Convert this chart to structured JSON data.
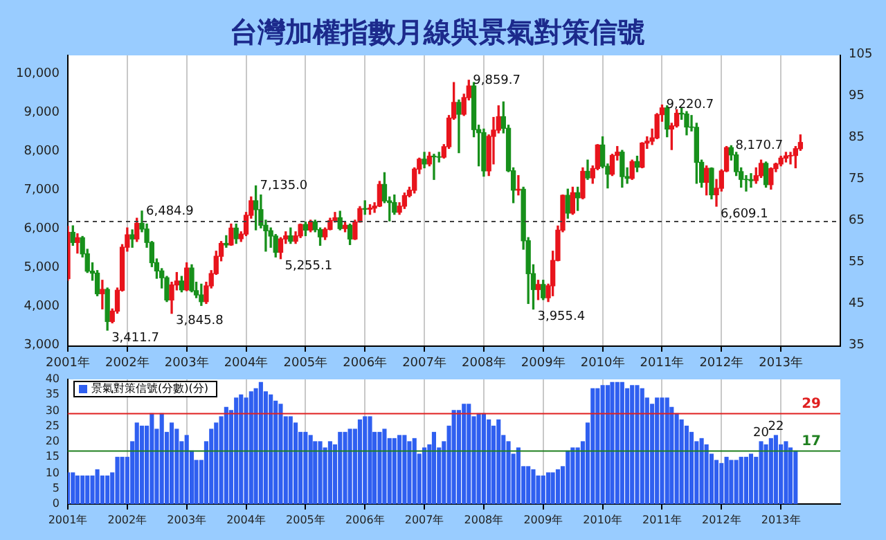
{
  "chart_data": [
    {
      "type": "candlestick",
      "title": "台灣加權指數月線與景氣對策信號",
      "x": [
        "2001-01",
        "2001-02",
        "2001-03",
        "2001-04",
        "2001-05",
        "2001-06",
        "2001-07",
        "2001-08",
        "2001-09",
        "2001-10",
        "2001-11",
        "2001-12",
        "2002-01",
        "2002-02",
        "2002-03",
        "2002-04",
        "2002-05",
        "2002-06",
        "2002-07",
        "2002-08",
        "2002-09",
        "2002-10",
        "2002-11",
        "2002-12",
        "2003-01",
        "2003-02",
        "2003-03",
        "2003-04",
        "2003-05",
        "2003-06",
        "2003-07",
        "2003-08",
        "2003-09",
        "2003-10",
        "2003-11",
        "2003-12",
        "2004-01",
        "2004-02",
        "2004-03",
        "2004-04",
        "2004-05",
        "2004-06",
        "2004-07",
        "2004-08",
        "2004-09",
        "2004-10",
        "2004-11",
        "2004-12",
        "2005-01",
        "2005-02",
        "2005-03",
        "2005-04",
        "2005-05",
        "2005-06",
        "2005-07",
        "2005-08",
        "2005-09",
        "2005-10",
        "2005-11",
        "2005-12",
        "2006-01",
        "2006-02",
        "2006-03",
        "2006-04",
        "2006-05",
        "2006-06",
        "2006-07",
        "2006-08",
        "2006-09",
        "2006-10",
        "2006-11",
        "2006-12",
        "2007-01",
        "2007-02",
        "2007-03",
        "2007-04",
        "2007-05",
        "2007-06",
        "2007-07",
        "2007-08",
        "2007-09",
        "2007-10",
        "2007-11",
        "2007-12",
        "2008-01",
        "2008-02",
        "2008-03",
        "2008-04",
        "2008-05",
        "2008-06",
        "2008-07",
        "2008-08",
        "2008-09",
        "2008-10",
        "2008-11",
        "2008-12",
        "2009-01",
        "2009-02",
        "2009-03",
        "2009-04",
        "2009-05",
        "2009-06",
        "2009-07",
        "2009-08",
        "2009-09",
        "2009-10",
        "2009-11",
        "2009-12",
        "2010-01",
        "2010-02",
        "2010-03",
        "2010-04",
        "2010-05",
        "2010-06",
        "2010-07",
        "2010-08",
        "2010-09",
        "2010-10",
        "2010-11",
        "2010-12",
        "2011-01",
        "2011-02",
        "2011-03",
        "2011-04",
        "2011-05",
        "2011-06",
        "2011-07",
        "2011-08",
        "2011-09",
        "2011-10",
        "2011-11",
        "2011-12",
        "2012-01",
        "2012-02",
        "2012-03",
        "2012-04",
        "2012-05",
        "2012-06",
        "2012-07",
        "2012-08",
        "2012-09",
        "2012-10",
        "2012-11",
        "2012-12",
        "2013-01",
        "2013-02",
        "2013-03",
        "2013-04",
        "2013-05"
      ],
      "ohlc": [
        [
          4743,
          6090,
          4700,
          5936
        ],
        [
          5936,
          6104,
          5600,
          5674
        ],
        [
          5674,
          5900,
          5400,
          5797
        ],
        [
          5797,
          5830,
          5300,
          5381
        ],
        [
          5381,
          5500,
          4900,
          4935
        ],
        [
          4935,
          5150,
          4700,
          4883
        ],
        [
          4883,
          4950,
          4300,
          4352
        ],
        [
          4352,
          4700,
          3960,
          4463
        ],
        [
          4463,
          4500,
          3411.7,
          3636
        ],
        [
          3636,
          3960,
          3600,
          3903
        ],
        [
          3903,
          4500,
          3850,
          4441
        ],
        [
          4441,
          5620,
          4420,
          5551
        ],
        [
          5551,
          6050,
          5450,
          5872
        ],
        [
          5872,
          6000,
          5550,
          5765
        ],
        [
          5765,
          6300,
          5700,
          6167
        ],
        [
          6167,
          6484.9,
          5950,
          6021
        ],
        [
          6021,
          6150,
          5550,
          5675
        ],
        [
          5675,
          5700,
          5050,
          5153
        ],
        [
          5153,
          5250,
          4750,
          4940
        ],
        [
          4940,
          5000,
          4500,
          4764
        ],
        [
          4764,
          4800,
          4150,
          4191
        ],
        [
          4191,
          4650,
          3845.8,
          4579
        ],
        [
          4579,
          4900,
          4450,
          4680
        ],
        [
          4680,
          4800,
          4400,
          4452
        ],
        [
          4452,
          5150,
          4430,
          5015
        ],
        [
          5015,
          5100,
          4400,
          4431
        ],
        [
          4431,
          4650,
          4250,
          4321
        ],
        [
          4321,
          4600,
          4050,
          4148
        ],
        [
          4148,
          4650,
          4100,
          4555
        ],
        [
          4555,
          4950,
          4500,
          4872
        ],
        [
          4872,
          5450,
          4850,
          5318
        ],
        [
          5318,
          5700,
          5200,
          5650
        ],
        [
          5650,
          5850,
          5550,
          5611
        ],
        [
          5611,
          6150,
          5600,
          6045
        ],
        [
          6045,
          6150,
          5650,
          5771
        ],
        [
          5771,
          5950,
          5700,
          5890
        ],
        [
          5890,
          6450,
          5850,
          6375
        ],
        [
          6375,
          6850,
          6300,
          6750
        ],
        [
          6750,
          7135.0,
          6000,
          6522
        ],
        [
          6522,
          6900,
          6050,
          6117
        ],
        [
          6117,
          6250,
          5450,
          5977
        ],
        [
          5977,
          6050,
          5550,
          5840
        ],
        [
          5840,
          5880,
          5300,
          5420
        ],
        [
          5420,
          5800,
          5255.1,
          5765
        ],
        [
          5765,
          5950,
          5650,
          5845
        ],
        [
          5845,
          6050,
          5650,
          5706
        ],
        [
          5706,
          5950,
          5650,
          5844
        ],
        [
          5844,
          6150,
          5800,
          6139
        ],
        [
          6139,
          6200,
          5850,
          5994
        ],
        [
          5994,
          6250,
          5950,
          6207
        ],
        [
          6207,
          6250,
          5950,
          6005
        ],
        [
          6005,
          6050,
          5600,
          5819
        ],
        [
          5819,
          6050,
          5750,
          6012
        ],
        [
          6012,
          6300,
          6000,
          6241
        ],
        [
          6241,
          6450,
          6200,
          6312
        ],
        [
          6312,
          6480,
          6000,
          6033
        ],
        [
          6033,
          6200,
          5950,
          6118
        ],
        [
          6118,
          6150,
          5620,
          5764
        ],
        [
          5764,
          6250,
          5750,
          6203
        ],
        [
          6203,
          6600,
          6200,
          6548
        ],
        [
          6548,
          6750,
          6400,
          6532
        ],
        [
          6532,
          6650,
          6400,
          6561
        ],
        [
          6561,
          6700,
          6450,
          6613
        ],
        [
          6613,
          7250,
          6600,
          7171
        ],
        [
          7171,
          7475,
          6700,
          6747
        ],
        [
          6747,
          6850,
          6230,
          6704
        ],
        [
          6704,
          6900,
          6400,
          6454
        ],
        [
          6454,
          6700,
          6400,
          6611
        ],
        [
          6611,
          6950,
          6550,
          6883
        ],
        [
          6883,
          7100,
          6850,
          7021
        ],
        [
          7021,
          7600,
          6950,
          7567
        ],
        [
          7567,
          7850,
          7450,
          7823
        ],
        [
          7823,
          8000,
          7600,
          7699
        ],
        [
          7699,
          8000,
          7650,
          7901
        ],
        [
          7901,
          7950,
          7300,
          7884
        ],
        [
          7884,
          8000,
          7750,
          7875
        ],
        [
          7875,
          8200,
          7850,
          8145
        ],
        [
          8145,
          8950,
          8100,
          8883
        ],
        [
          8883,
          9800,
          8850,
          9287
        ],
        [
          9287,
          9350,
          7990,
          8982
        ],
        [
          8982,
          9500,
          8950,
          9411
        ],
        [
          9411,
          9859.7,
          9350,
          9711
        ],
        [
          9711,
          9800,
          8400,
          8586
        ],
        [
          8586,
          8700,
          7650,
          8506
        ],
        [
          8506,
          8600,
          7384,
          7521
        ],
        [
          7521,
          8450,
          7400,
          8412
        ],
        [
          8412,
          8900,
          7700,
          8572
        ],
        [
          8572,
          9200,
          8500,
          8919
        ],
        [
          8919,
          9300,
          8500,
          8619
        ],
        [
          8619,
          8700,
          7500,
          7523
        ],
        [
          7523,
          7600,
          6700,
          7024
        ],
        [
          7024,
          7400,
          6900,
          7046
        ],
        [
          7046,
          7100,
          5500,
          5719
        ],
        [
          5719,
          5800,
          4100,
          4870
        ],
        [
          4870,
          5100,
          3955.4,
          4460
        ],
        [
          4460,
          4700,
          4200,
          4591
        ],
        [
          4591,
          4700,
          4200,
          4248
        ],
        [
          4248,
          4600,
          4150,
          4557
        ],
        [
          4557,
          5450,
          4300,
          5210
        ],
        [
          5210,
          6100,
          5200,
          5992
        ],
        [
          5992,
          6900,
          5950,
          6890
        ],
        [
          6890,
          7050,
          6300,
          6432
        ],
        [
          6432,
          7100,
          6400,
          6958
        ],
        [
          6958,
          7100,
          6500,
          6826
        ],
        [
          6826,
          7600,
          6800,
          7509
        ],
        [
          7509,
          7800,
          7300,
          7340
        ],
        [
          7340,
          7650,
          7200,
          7582
        ],
        [
          7582,
          8200,
          7550,
          8188
        ],
        [
          8188,
          8400,
          7600,
          7640
        ],
        [
          7640,
          7700,
          7080,
          7436
        ],
        [
          7436,
          7950,
          7400,
          7920
        ],
        [
          7920,
          8150,
          7800,
          8004
        ],
        [
          8004,
          8050,
          7100,
          7374
        ],
        [
          7374,
          7600,
          7200,
          7329
        ],
        [
          7329,
          7800,
          7300,
          7761
        ],
        [
          7761,
          7900,
          7500,
          7616
        ],
        [
          7616,
          8250,
          7600,
          8238
        ],
        [
          8238,
          8400,
          8100,
          8287
        ],
        [
          8287,
          8600,
          8200,
          8372
        ],
        [
          8372,
          9000,
          8350,
          8972
        ],
        [
          8972,
          9220.7,
          8800,
          9145
        ],
        [
          9145,
          9200,
          8400,
          8600
        ],
        [
          8600,
          8750,
          8070,
          8683
        ],
        [
          8683,
          9100,
          8650,
          9007
        ],
        [
          9007,
          9150,
          8850,
          8988
        ],
        [
          8988,
          9050,
          8450,
          8653
        ],
        [
          8653,
          8950,
          8550,
          8644
        ],
        [
          8644,
          8750,
          7200,
          7741
        ],
        [
          7741,
          7800,
          7100,
          7225
        ],
        [
          7225,
          7650,
          6900,
          7588
        ],
        [
          7588,
          7600,
          6800,
          6904
        ],
        [
          6904,
          7300,
          6609.1,
          7072
        ],
        [
          7072,
          7550,
          7000,
          7517
        ],
        [
          7517,
          8150,
          7500,
          8121
        ],
        [
          8121,
          8170.7,
          7800,
          7933
        ],
        [
          7933,
          8000,
          7400,
          7501
        ],
        [
          7501,
          7600,
          7100,
          7301
        ],
        [
          7301,
          7400,
          7000,
          7296
        ],
        [
          7296,
          7450,
          7100,
          7270
        ],
        [
          7270,
          7600,
          7200,
          7397
        ],
        [
          7397,
          7800,
          7350,
          7715
        ],
        [
          7715,
          7750,
          7100,
          7166
        ],
        [
          7166,
          7600,
          7050,
          7580
        ],
        [
          7580,
          7720,
          7500,
          7699
        ],
        [
          7699,
          7900,
          7650,
          7850
        ],
        [
          7850,
          8000,
          7750,
          7907
        ],
        [
          7907,
          8000,
          7700,
          7918
        ],
        [
          7918,
          8150,
          7600,
          8093
        ],
        [
          8093,
          8450,
          8050,
          8254
        ]
      ],
      "colors": [
        "#e8141c",
        "#17901b",
        "#e8141c",
        "#17901b",
        "#17901b",
        "#17901b",
        "#17901b",
        "#e8141c",
        "#17901b",
        "#e8141c",
        "#e8141c",
        "#e8141c",
        "#e8141c",
        "#17901b",
        "#e8141c",
        "#17901b",
        "#17901b",
        "#17901b",
        "#17901b",
        "#17901b",
        "#17901b",
        "#e8141c",
        "#e8141c",
        "#17901b",
        "#e8141c",
        "#17901b",
        "#17901b",
        "#17901b",
        "#e8141c",
        "#e8141c",
        "#e8141c",
        "#e8141c",
        "#17901b",
        "#e8141c",
        "#17901b",
        "#e8141c",
        "#e8141c",
        "#e8141c",
        "#17901b",
        "#17901b",
        "#17901b",
        "#17901b",
        "#17901b",
        "#e8141c",
        "#e8141c",
        "#17901b",
        "#e8141c",
        "#e8141c",
        "#17901b",
        "#e8141c",
        "#17901b",
        "#17901b",
        "#e8141c",
        "#e8141c",
        "#e8141c",
        "#17901b",
        "#e8141c",
        "#17901b",
        "#e8141c",
        "#e8141c",
        "#17901b",
        "#e8141c",
        "#e8141c",
        "#e8141c",
        "#17901b",
        "#17901b",
        "#17901b",
        "#e8141c",
        "#e8141c",
        "#e8141c",
        "#e8141c",
        "#e8141c",
        "#17901b",
        "#e8141c",
        "#17901b",
        "#17901b",
        "#e8141c",
        "#e8141c",
        "#e8141c",
        "#17901b",
        "#e8141c",
        "#e8141c",
        "#17901b",
        "#17901b",
        "#17901b",
        "#e8141c",
        "#e8141c",
        "#e8141c",
        "#17901b",
        "#17901b",
        "#17901b",
        "#e8141c",
        "#17901b",
        "#17901b",
        "#17901b",
        "#e8141c",
        "#17901b",
        "#e8141c",
        "#e8141c",
        "#e8141c",
        "#e8141c",
        "#17901b",
        "#e8141c",
        "#17901b",
        "#e8141c",
        "#17901b",
        "#e8141c",
        "#e8141c",
        "#17901b",
        "#17901b",
        "#e8141c",
        "#e8141c",
        "#17901b",
        "#17901b",
        "#e8141c",
        "#17901b",
        "#e8141c",
        "#e8141c",
        "#e8141c",
        "#e8141c",
        "#e8141c",
        "#17901b",
        "#e8141c",
        "#e8141c",
        "#17901b",
        "#17901b",
        "#17901b",
        "#17901b",
        "#17901b",
        "#e8141c",
        "#17901b",
        "#e8141c",
        "#e8141c",
        "#e8141c",
        "#17901b",
        "#17901b",
        "#17901b",
        "#17901b",
        "#17901b",
        "#e8141c",
        "#e8141c",
        "#17901b",
        "#e8141c",
        "#e8141c",
        "#e8141c",
        "#e8141c",
        "#e8141c",
        "#e8141c",
        "#e8141c"
      ],
      "xlim": [
        "2001-01",
        "2014-01"
      ],
      "xticks": [
        {
          "value": "2001-01",
          "label": "2001年"
        },
        {
          "value": "2002-01",
          "label": "2002年"
        },
        {
          "value": "2003-01",
          "label": "2003年"
        },
        {
          "value": "2004-01",
          "label": "2004年"
        },
        {
          "value": "2005-01",
          "label": "2005年"
        },
        {
          "value": "2006-01",
          "label": "2006年"
        },
        {
          "value": "2007-01",
          "label": "2007年"
        },
        {
          "value": "2008-01",
          "label": "2008年"
        },
        {
          "value": "2009-01",
          "label": "2009年"
        },
        {
          "value": "2010-01",
          "label": "2010年"
        },
        {
          "value": "2011-01",
          "label": "2011年"
        },
        {
          "value": "2012-01",
          "label": "2012年"
        },
        {
          "value": "2013-01",
          "label": "2013年"
        }
      ],
      "ylim": [
        3000,
        10500
      ],
      "yticks": [
        {
          "value": 3000,
          "label": "3,000"
        },
        {
          "value": 4000,
          "label": "4,000"
        },
        {
          "value": 5000,
          "label": "5,000"
        },
        {
          "value": 6000,
          "label": "6,000"
        },
        {
          "value": 7000,
          "label": "7,000"
        },
        {
          "value": 8000,
          "label": "8,000"
        },
        {
          "value": 9000,
          "label": "9,000"
        },
        {
          "value": 10000,
          "label": "10,000"
        }
      ],
      "y2lim": [
        35,
        105
      ],
      "y2ticks": [
        35,
        45,
        55,
        65,
        75,
        85,
        95,
        105
      ],
      "grid": "x",
      "ref_lines": [
        {
          "axis": "y2",
          "value": 65,
          "color": "#404040",
          "line_style": "dashed"
        }
      ],
      "annotations": [
        {
          "text": "3,411.7",
          "x": "2001-09",
          "y": 3411.7
        },
        {
          "text": "6,484.9",
          "x": "2002-04",
          "y": 6484.9
        },
        {
          "text": "3,845.8",
          "x": "2002-10",
          "y": 3845.8
        },
        {
          "text": "7,135.0",
          "x": "2004-03",
          "y": 7135.0
        },
        {
          "text": "5,255.1",
          "x": "2004-08",
          "y": 5255.1
        },
        {
          "text": "9,859.7",
          "x": "2007-10",
          "y": 9859.7
        },
        {
          "text": "3,955.4",
          "x": "2008-11",
          "y": 3955.4
        },
        {
          "text": "9,220.7",
          "x": "2011-01",
          "y": 9220.7
        },
        {
          "text": "6,609.1",
          "x": "2011-12",
          "y": 6609.1
        },
        {
          "text": "8,170.7",
          "x": "2012-03",
          "y": 8170.7
        }
      ]
    },
    {
      "type": "bar",
      "x": [
        "2001-01",
        "2001-02",
        "2001-03",
        "2001-04",
        "2001-05",
        "2001-06",
        "2001-07",
        "2001-08",
        "2001-09",
        "2001-10",
        "2001-11",
        "2001-12",
        "2002-01",
        "2002-02",
        "2002-03",
        "2002-04",
        "2002-05",
        "2002-06",
        "2002-07",
        "2002-08",
        "2002-09",
        "2002-10",
        "2002-11",
        "2002-12",
        "2003-01",
        "2003-02",
        "2003-03",
        "2003-04",
        "2003-05",
        "2003-06",
        "2003-07",
        "2003-08",
        "2003-09",
        "2003-10",
        "2003-11",
        "2003-12",
        "2004-01",
        "2004-02",
        "2004-03",
        "2004-04",
        "2004-05",
        "2004-06",
        "2004-07",
        "2004-08",
        "2004-09",
        "2004-10",
        "2004-11",
        "2004-12",
        "2005-01",
        "2005-02",
        "2005-03",
        "2005-04",
        "2005-05",
        "2005-06",
        "2005-07",
        "2005-08",
        "2005-09",
        "2005-10",
        "2005-11",
        "2005-12",
        "2006-01",
        "2006-02",
        "2006-03",
        "2006-04",
        "2006-05",
        "2006-06",
        "2006-07",
        "2006-08",
        "2006-09",
        "2006-10",
        "2006-11",
        "2006-12",
        "2007-01",
        "2007-02",
        "2007-03",
        "2007-04",
        "2007-05",
        "2007-06",
        "2007-07",
        "2007-08",
        "2007-09",
        "2007-10",
        "2007-11",
        "2007-12",
        "2008-01",
        "2008-02",
        "2008-03",
        "2008-04",
        "2008-05",
        "2008-06",
        "2008-07",
        "2008-08",
        "2008-09",
        "2008-10",
        "2008-11",
        "2008-12",
        "2009-01",
        "2009-02",
        "2009-03",
        "2009-04",
        "2009-05",
        "2009-06",
        "2009-07",
        "2009-08",
        "2009-09",
        "2009-10",
        "2009-11",
        "2009-12",
        "2010-01",
        "2010-02",
        "2010-03",
        "2010-04",
        "2010-05",
        "2010-06",
        "2010-07",
        "2010-08",
        "2010-09",
        "2010-10",
        "2010-11",
        "2010-12",
        "2011-01",
        "2011-02",
        "2011-03",
        "2011-04",
        "2011-05",
        "2011-06",
        "2011-07",
        "2011-08",
        "2011-09",
        "2011-10",
        "2011-11",
        "2011-12",
        "2012-01",
        "2012-02",
        "2012-03",
        "2012-04",
        "2012-05",
        "2012-06",
        "2012-07",
        "2012-08",
        "2012-09",
        "2012-10",
        "2012-11",
        "2012-12",
        "2013-01",
        "2013-02",
        "2013-03",
        "2013-04"
      ],
      "series": [
        {
          "name": "景氣對策信號(分數)(分)",
          "color": "#2f5ff0",
          "values": [
            10,
            10,
            9,
            9,
            9,
            9,
            11,
            9,
            9,
            10,
            15,
            15,
            15,
            20,
            26,
            25,
            25,
            29,
            24,
            29,
            23,
            26,
            24,
            20,
            22,
            17,
            14,
            14,
            20,
            24,
            26,
            28,
            31,
            30,
            34,
            35,
            34,
            36,
            37,
            39,
            36,
            35,
            33,
            32,
            28,
            28,
            26,
            23,
            23,
            22,
            20,
            20,
            18,
            20,
            19,
            23,
            23,
            24,
            24,
            27,
            28,
            28,
            23,
            23,
            24,
            21,
            21,
            22,
            22,
            20,
            21,
            16,
            18,
            19,
            23,
            18,
            20,
            25,
            30,
            30,
            32,
            32,
            28,
            29,
            29,
            27,
            25,
            27,
            22,
            20,
            16,
            18,
            12,
            12,
            11,
            9,
            9,
            10,
            10,
            11,
            12,
            17,
            18,
            18,
            20,
            26,
            37,
            37,
            38,
            38,
            39,
            39,
            39,
            37,
            38,
            38,
            37,
            34,
            32,
            34,
            34,
            34,
            31,
            29,
            27,
            25,
            23,
            20,
            21,
            19,
            16,
            14,
            13,
            15,
            14,
            14,
            15,
            15,
            16,
            15,
            20,
            19,
            21,
            22,
            19,
            20,
            18,
            17
          ]
        }
      ],
      "xlim": [
        "2001-01",
        "2014-01"
      ],
      "xticks": [
        {
          "value": "2001-01",
          "label": "2001年"
        },
        {
          "value": "2002-01",
          "label": "2002年"
        },
        {
          "value": "2003-01",
          "label": "2003年"
        },
        {
          "value": "2004-01",
          "label": "2004年"
        },
        {
          "value": "2005-01",
          "label": "2005年"
        },
        {
          "value": "2006-01",
          "label": "2006年"
        },
        {
          "value": "2007-01",
          "label": "2007年"
        },
        {
          "value": "2008-01",
          "label": "2008年"
        },
        {
          "value": "2009-01",
          "label": "2009年"
        },
        {
          "value": "2010-01",
          "label": "2010年"
        },
        {
          "value": "2011-01",
          "label": "2011年"
        },
        {
          "value": "2012-01",
          "label": "2012年"
        },
        {
          "value": "2013-01",
          "label": "2013年"
        }
      ],
      "ylim": [
        0,
        40
      ],
      "yticks": [
        0,
        5,
        10,
        15,
        20,
        25,
        30,
        35,
        40
      ],
      "grid": "x",
      "legend": "top left",
      "ref_lines": [
        {
          "axis": "y",
          "value": 29,
          "label": "29",
          "color": "#e02020"
        },
        {
          "axis": "y",
          "value": 17,
          "label": "17",
          "color": "#208020"
        }
      ],
      "annotations": [
        {
          "text": "20",
          "x": "2012-09",
          "y": 20
        },
        {
          "text": "22",
          "x": "2012-12",
          "y": 22
        }
      ]
    }
  ]
}
